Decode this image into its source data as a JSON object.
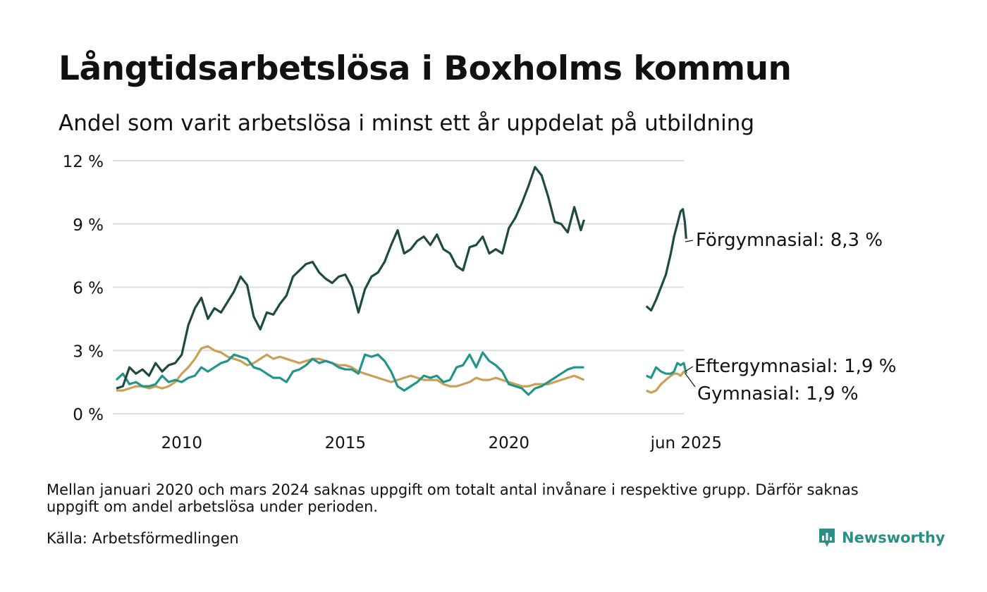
{
  "header": {
    "title": "Långtidsarbetslösa i Boxholms kommun",
    "subtitle": "Andel som varit arbetslösa i minst ett år uppdelat på utbildning"
  },
  "footer": {
    "note": "Mellan januari 2020 och mars 2024 saknas uppgift om totalt antal invånare i respektive grupp. Därför saknas uppgift om andel arbetslösa under perioden.",
    "source": "Källa: Arbetsförmedlingen",
    "brand": "Newsworthy",
    "brand_color": "#2a8f85"
  },
  "chart_data": {
    "type": "line",
    "y_ticks": [
      "0 %",
      "3 %",
      "6 %",
      "9 %",
      "12 %"
    ],
    "y_tick_values": [
      0,
      3,
      6,
      9,
      12
    ],
    "ylim": [
      0,
      12
    ],
    "x_ticks": [
      "2010",
      "2015",
      "2020",
      "jun 2025"
    ],
    "x_tick_values": [
      2010.0,
      2015.0,
      2020.0,
      2025.42
    ],
    "xlim": [
      2008.0,
      2025.5
    ],
    "grid": true,
    "series": [
      {
        "name": "Förgymnasial",
        "label": "Förgymnasial: 8,3 %",
        "color": "#1f4a44",
        "segments": [
          [
            [
              2008.0,
              1.2
            ],
            [
              2008.2,
              1.3
            ],
            [
              2008.4,
              2.2
            ],
            [
              2008.6,
              1.9
            ],
            [
              2008.8,
              2.1
            ],
            [
              2009.0,
              1.8
            ],
            [
              2009.2,
              2.4
            ],
            [
              2009.4,
              2.0
            ],
            [
              2009.6,
              2.3
            ],
            [
              2009.8,
              2.4
            ],
            [
              2010.0,
              2.8
            ],
            [
              2010.2,
              4.2
            ],
            [
              2010.4,
              5.0
            ],
            [
              2010.6,
              5.5
            ],
            [
              2010.8,
              4.5
            ],
            [
              2011.0,
              5.0
            ],
            [
              2011.2,
              4.8
            ],
            [
              2011.4,
              5.3
            ],
            [
              2011.6,
              5.8
            ],
            [
              2011.8,
              6.5
            ],
            [
              2012.0,
              6.1
            ],
            [
              2012.2,
              4.6
            ],
            [
              2012.4,
              4.0
            ],
            [
              2012.6,
              4.8
            ],
            [
              2012.8,
              4.7
            ],
            [
              2013.0,
              5.2
            ],
            [
              2013.2,
              5.6
            ],
            [
              2013.4,
              6.5
            ],
            [
              2013.6,
              6.8
            ],
            [
              2013.8,
              7.1
            ],
            [
              2014.0,
              7.2
            ],
            [
              2014.2,
              6.7
            ],
            [
              2014.4,
              6.4
            ],
            [
              2014.6,
              6.2
            ],
            [
              2014.8,
              6.5
            ],
            [
              2015.0,
              6.6
            ],
            [
              2015.2,
              6.0
            ],
            [
              2015.4,
              4.8
            ],
            [
              2015.6,
              5.9
            ],
            [
              2015.8,
              6.5
            ],
            [
              2016.0,
              6.7
            ],
            [
              2016.2,
              7.2
            ],
            [
              2016.4,
              8.0
            ],
            [
              2016.6,
              8.7
            ],
            [
              2016.8,
              7.6
            ],
            [
              2017.0,
              7.8
            ],
            [
              2017.2,
              8.2
            ],
            [
              2017.4,
              8.4
            ],
            [
              2017.6,
              8.0
            ],
            [
              2017.8,
              8.5
            ],
            [
              2018.0,
              7.8
            ],
            [
              2018.2,
              7.6
            ],
            [
              2018.4,
              7.0
            ],
            [
              2018.6,
              6.8
            ],
            [
              2018.8,
              7.9
            ],
            [
              2019.0,
              8.0
            ],
            [
              2019.2,
              8.4
            ],
            [
              2019.4,
              7.6
            ],
            [
              2019.6,
              7.8
            ],
            [
              2019.8,
              7.6
            ],
            [
              2020.0,
              8.8
            ],
            [
              2020.2,
              9.3
            ],
            [
              2020.4,
              10.0
            ],
            [
              2020.6,
              10.8
            ],
            [
              2020.8,
              11.7
            ],
            [
              2021.0,
              11.3
            ],
            [
              2021.2,
              10.3
            ],
            [
              2021.4,
              9.1
            ],
            [
              2021.6,
              9.0
            ],
            [
              2021.8,
              8.6
            ],
            [
              2022.0,
              9.8
            ],
            [
              2022.2,
              8.7
            ],
            [
              2022.3,
              9.2
            ]
          ],
          [
            [
              2024.2,
              5.1
            ],
            [
              2024.35,
              4.9
            ],
            [
              2024.5,
              5.4
            ],
            [
              2024.65,
              6.0
            ],
            [
              2024.8,
              6.6
            ],
            [
              2024.95,
              7.6
            ],
            [
              2025.05,
              8.4
            ],
            [
              2025.15,
              9.0
            ],
            [
              2025.25,
              9.6
            ],
            [
              2025.32,
              9.7
            ],
            [
              2025.38,
              9.1
            ],
            [
              2025.42,
              8.3
            ]
          ]
        ]
      },
      {
        "name": "Eftergymnasial",
        "label": "Eftergymnasial: 1,9 %",
        "color": "#21958a",
        "segments": [
          [
            [
              2008.0,
              1.6
            ],
            [
              2008.2,
              1.9
            ],
            [
              2008.4,
              1.4
            ],
            [
              2008.6,
              1.5
            ],
            [
              2008.8,
              1.3
            ],
            [
              2009.0,
              1.3
            ],
            [
              2009.2,
              1.4
            ],
            [
              2009.4,
              1.8
            ],
            [
              2009.6,
              1.5
            ],
            [
              2009.8,
              1.6
            ],
            [
              2010.0,
              1.5
            ],
            [
              2010.2,
              1.7
            ],
            [
              2010.4,
              1.8
            ],
            [
              2010.6,
              2.2
            ],
            [
              2010.8,
              2.0
            ],
            [
              2011.0,
              2.2
            ],
            [
              2011.2,
              2.4
            ],
            [
              2011.4,
              2.5
            ],
            [
              2011.6,
              2.8
            ],
            [
              2011.8,
              2.7
            ],
            [
              2012.0,
              2.6
            ],
            [
              2012.2,
              2.2
            ],
            [
              2012.4,
              2.1
            ],
            [
              2012.6,
              1.9
            ],
            [
              2012.8,
              1.7
            ],
            [
              2013.0,
              1.7
            ],
            [
              2013.2,
              1.5
            ],
            [
              2013.4,
              2.0
            ],
            [
              2013.6,
              2.1
            ],
            [
              2013.8,
              2.3
            ],
            [
              2014.0,
              2.6
            ],
            [
              2014.2,
              2.4
            ],
            [
              2014.4,
              2.5
            ],
            [
              2014.6,
              2.4
            ],
            [
              2014.8,
              2.2
            ],
            [
              2015.0,
              2.1
            ],
            [
              2015.2,
              2.1
            ],
            [
              2015.4,
              1.9
            ],
            [
              2015.6,
              2.8
            ],
            [
              2015.8,
              2.7
            ],
            [
              2016.0,
              2.8
            ],
            [
              2016.2,
              2.5
            ],
            [
              2016.4,
              2.0
            ],
            [
              2016.6,
              1.3
            ],
            [
              2016.8,
              1.1
            ],
            [
              2017.0,
              1.3
            ],
            [
              2017.2,
              1.5
            ],
            [
              2017.4,
              1.8
            ],
            [
              2017.6,
              1.7
            ],
            [
              2017.8,
              1.8
            ],
            [
              2018.0,
              1.5
            ],
            [
              2018.2,
              1.6
            ],
            [
              2018.4,
              2.2
            ],
            [
              2018.6,
              2.3
            ],
            [
              2018.8,
              2.8
            ],
            [
              2019.0,
              2.2
            ],
            [
              2019.2,
              2.9
            ],
            [
              2019.4,
              2.5
            ],
            [
              2019.6,
              2.3
            ],
            [
              2019.8,
              2.0
            ],
            [
              2020.0,
              1.4
            ],
            [
              2020.2,
              1.3
            ],
            [
              2020.4,
              1.2
            ],
            [
              2020.6,
              0.9
            ],
            [
              2020.8,
              1.2
            ],
            [
              2021.0,
              1.3
            ],
            [
              2021.2,
              1.5
            ],
            [
              2021.4,
              1.7
            ],
            [
              2021.6,
              1.9
            ],
            [
              2021.8,
              2.1
            ],
            [
              2022.0,
              2.2
            ],
            [
              2022.3,
              2.2
            ]
          ],
          [
            [
              2024.2,
              1.8
            ],
            [
              2024.35,
              1.7
            ],
            [
              2024.5,
              2.2
            ],
            [
              2024.65,
              2.0
            ],
            [
              2024.8,
              1.9
            ],
            [
              2024.95,
              1.9
            ],
            [
              2025.05,
              2.0
            ],
            [
              2025.15,
              2.4
            ],
            [
              2025.25,
              2.3
            ],
            [
              2025.35,
              2.4
            ],
            [
              2025.42,
              1.9
            ]
          ]
        ]
      },
      {
        "name": "Gymnasial",
        "label": "Gymnasial: 1,9 %",
        "color": "#c9a055",
        "segments": [
          [
            [
              2008.0,
              1.1
            ],
            [
              2008.2,
              1.1
            ],
            [
              2008.4,
              1.2
            ],
            [
              2008.6,
              1.3
            ],
            [
              2008.8,
              1.3
            ],
            [
              2009.0,
              1.2
            ],
            [
              2009.2,
              1.3
            ],
            [
              2009.4,
              1.2
            ],
            [
              2009.6,
              1.3
            ],
            [
              2009.8,
              1.5
            ],
            [
              2010.0,
              1.9
            ],
            [
              2010.2,
              2.2
            ],
            [
              2010.4,
              2.6
            ],
            [
              2010.6,
              3.1
            ],
            [
              2010.8,
              3.2
            ],
            [
              2011.0,
              3.0
            ],
            [
              2011.2,
              2.9
            ],
            [
              2011.4,
              2.7
            ],
            [
              2011.6,
              2.6
            ],
            [
              2011.8,
              2.5
            ],
            [
              2012.0,
              2.3
            ],
            [
              2012.2,
              2.4
            ],
            [
              2012.4,
              2.6
            ],
            [
              2012.6,
              2.8
            ],
            [
              2012.8,
              2.6
            ],
            [
              2013.0,
              2.7
            ],
            [
              2013.2,
              2.6
            ],
            [
              2013.4,
              2.5
            ],
            [
              2013.6,
              2.4
            ],
            [
              2013.8,
              2.5
            ],
            [
              2014.0,
              2.6
            ],
            [
              2014.2,
              2.6
            ],
            [
              2014.4,
              2.5
            ],
            [
              2014.6,
              2.4
            ],
            [
              2014.8,
              2.3
            ],
            [
              2015.0,
              2.3
            ],
            [
              2015.2,
              2.2
            ],
            [
              2015.4,
              2.0
            ],
            [
              2015.6,
              1.9
            ],
            [
              2015.8,
              1.8
            ],
            [
              2016.0,
              1.7
            ],
            [
              2016.2,
              1.6
            ],
            [
              2016.4,
              1.5
            ],
            [
              2016.6,
              1.6
            ],
            [
              2016.8,
              1.7
            ],
            [
              2017.0,
              1.8
            ],
            [
              2017.2,
              1.7
            ],
            [
              2017.4,
              1.6
            ],
            [
              2017.6,
              1.6
            ],
            [
              2017.8,
              1.6
            ],
            [
              2018.0,
              1.4
            ],
            [
              2018.2,
              1.3
            ],
            [
              2018.4,
              1.3
            ],
            [
              2018.6,
              1.4
            ],
            [
              2018.8,
              1.5
            ],
            [
              2019.0,
              1.7
            ],
            [
              2019.2,
              1.6
            ],
            [
              2019.4,
              1.6
            ],
            [
              2019.6,
              1.7
            ],
            [
              2019.8,
              1.6
            ],
            [
              2020.0,
              1.5
            ],
            [
              2020.2,
              1.4
            ],
            [
              2020.4,
              1.3
            ],
            [
              2020.6,
              1.3
            ],
            [
              2020.8,
              1.4
            ],
            [
              2021.0,
              1.4
            ],
            [
              2021.2,
              1.4
            ],
            [
              2021.4,
              1.5
            ],
            [
              2021.6,
              1.6
            ],
            [
              2021.8,
              1.7
            ],
            [
              2022.0,
              1.8
            ],
            [
              2022.3,
              1.6
            ]
          ],
          [
            [
              2024.2,
              1.1
            ],
            [
              2024.35,
              1.0
            ],
            [
              2024.5,
              1.1
            ],
            [
              2024.65,
              1.4
            ],
            [
              2024.8,
              1.6
            ],
            [
              2024.95,
              1.8
            ],
            [
              2025.05,
              1.9
            ],
            [
              2025.15,
              1.9
            ],
            [
              2025.25,
              1.8
            ],
            [
              2025.35,
              2.0
            ],
            [
              2025.42,
              1.9
            ]
          ]
        ]
      }
    ]
  }
}
